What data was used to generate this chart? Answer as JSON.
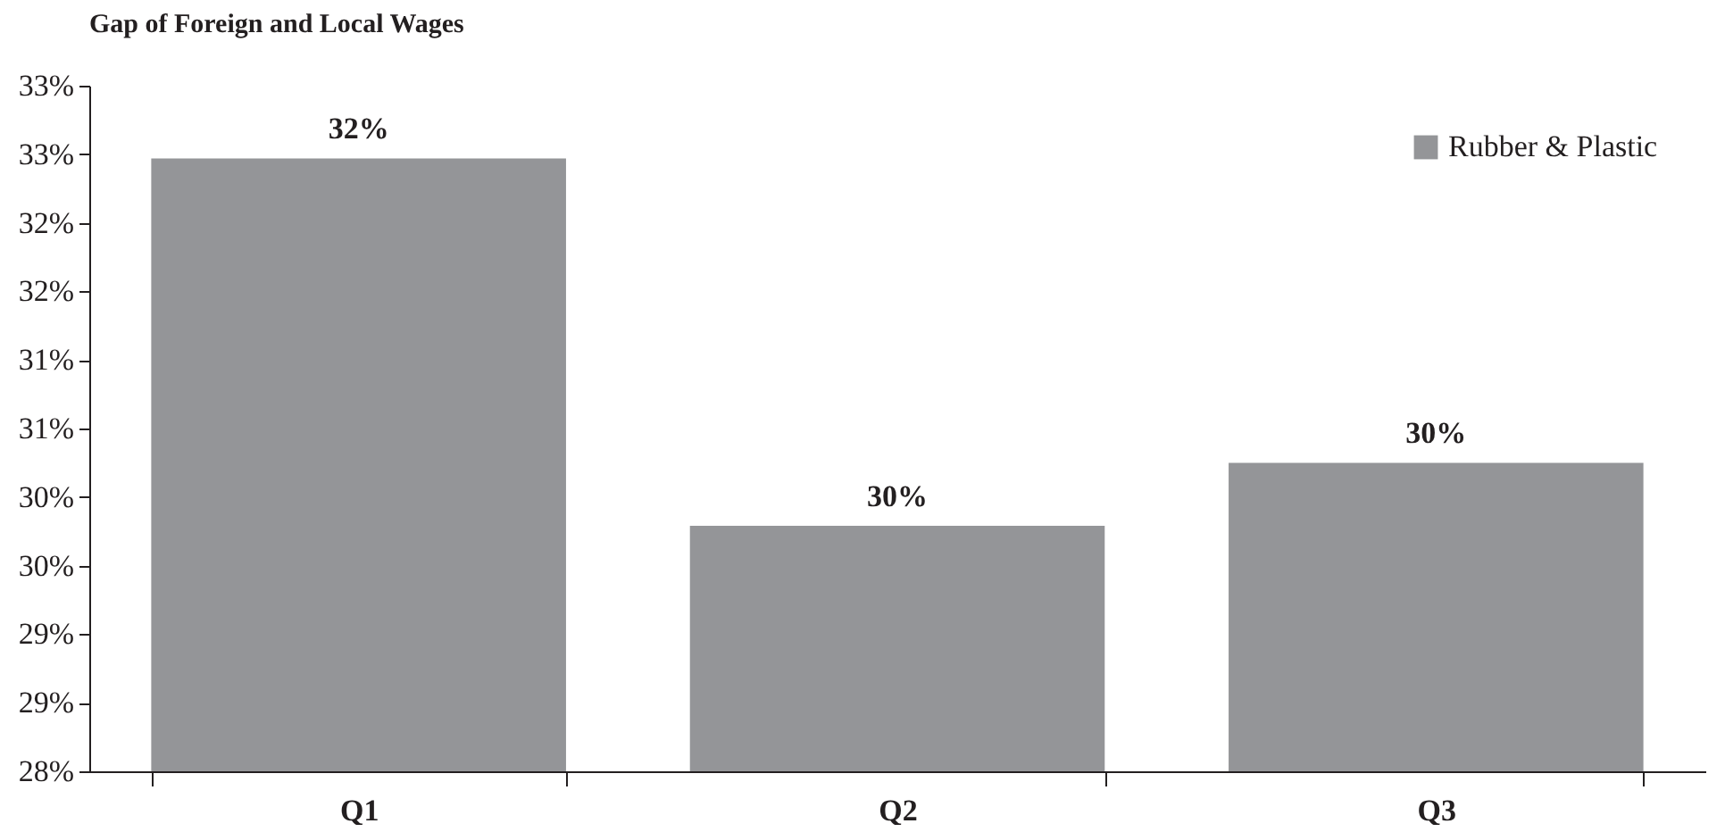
{
  "chart_data": {
    "type": "bar",
    "title": "Gap of Foreign and Local Wages",
    "categories": [
      "Q1",
      "Q2",
      "Q3"
    ],
    "series": [
      {
        "name": "Rubber & Plastic",
        "color": "#949598",
        "values": [
          32.47,
          29.79,
          30.25
        ],
        "value_labels": [
          "32%",
          "30%",
          "30%"
        ]
      }
    ],
    "ylim": [
      28,
      33
    ],
    "yticks": [
      {
        "value": 28,
        "label": "28%"
      },
      {
        "value": 28.5,
        "label": "29%"
      },
      {
        "value": 29,
        "label": "29%"
      },
      {
        "value": 29.5,
        "label": "30%"
      },
      {
        "value": 30,
        "label": "30%"
      },
      {
        "value": 30.5,
        "label": "31%"
      },
      {
        "value": 31,
        "label": "31%"
      },
      {
        "value": 31.5,
        "label": "32%"
      },
      {
        "value": 32,
        "label": "32%"
      },
      {
        "value": 32.5,
        "label": "33%"
      },
      {
        "value": 33,
        "label": "33%"
      }
    ],
    "legend": "top right"
  }
}
